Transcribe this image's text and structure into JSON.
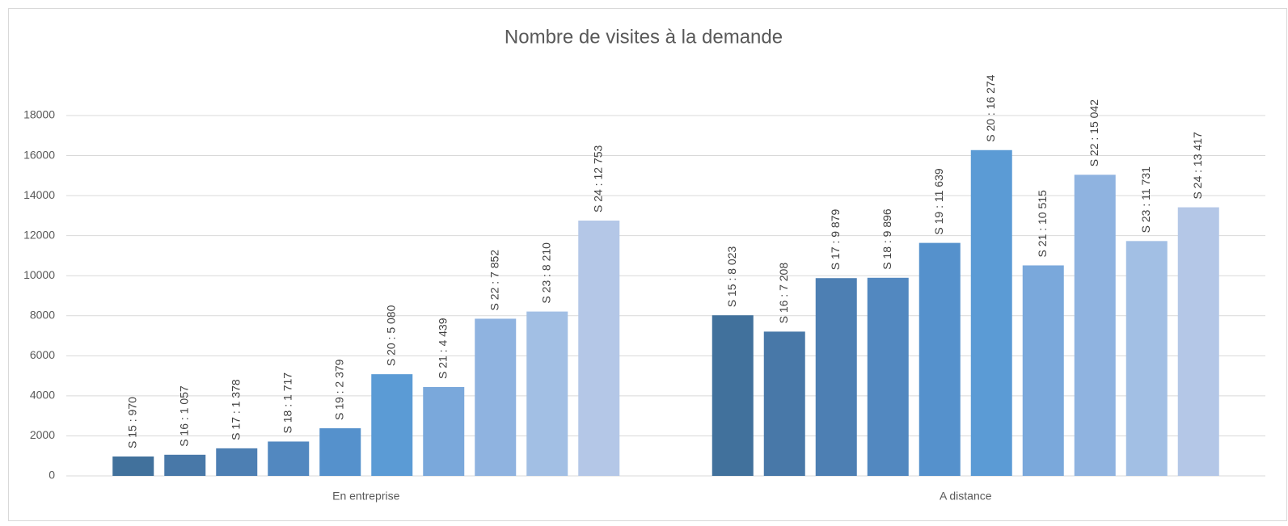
{
  "chart_data": {
    "type": "bar",
    "title": "Nombre de visites à la demande",
    "categories": [
      "En entreprise",
      "A distance"
    ],
    "series": [
      {
        "name": "S 15",
        "color": "#41719c",
        "values": [
          970,
          8023
        ],
        "value_labels": [
          "S 15 : 970",
          "S 15 : 8 023"
        ]
      },
      {
        "name": "S 16",
        "color": "#4878a8",
        "values": [
          1057,
          7208
        ],
        "value_labels": [
          "S 16 : 1 057",
          "S 16 : 7 208"
        ]
      },
      {
        "name": "S 17",
        "color": "#4d7fb3",
        "values": [
          1378,
          9879
        ],
        "value_labels": [
          "S 17 : 1 378",
          "S 17 : 9 879"
        ]
      },
      {
        "name": "S 18",
        "color": "#5288c0",
        "values": [
          1717,
          9896
        ],
        "value_labels": [
          "S 18 : 1 717",
          "S 18 : 9 896"
        ]
      },
      {
        "name": "S 19",
        "color": "#5591cc",
        "values": [
          2379,
          11639
        ],
        "value_labels": [
          "S 19 : 2 379",
          "S 19 : 11 639"
        ]
      },
      {
        "name": "S 20",
        "color": "#5b9bd5",
        "values": [
          5080,
          16274
        ],
        "value_labels": [
          "S 20 : 5 080",
          "S 20 : 16 274"
        ]
      },
      {
        "name": "S 21",
        "color": "#7aa8db",
        "values": [
          4439,
          10515
        ],
        "value_labels": [
          "S 21 : 4 439",
          "S 21 : 10 515"
        ]
      },
      {
        "name": "S 22",
        "color": "#8fb3e0",
        "values": [
          7852,
          15042
        ],
        "value_labels": [
          "S 22 : 7 852",
          "S 22 : 15 042"
        ]
      },
      {
        "name": "S 23",
        "color": "#a2bfe4",
        "values": [
          8210,
          11731
        ],
        "value_labels": [
          "S 23 : 8 210",
          "S 23 : 11 731"
        ]
      },
      {
        "name": "S 24",
        "color": "#b4c7e7",
        "values": [
          12753,
          13417
        ],
        "value_labels": [
          "S 24 : 12 753",
          "S 24 : 13 417"
        ]
      }
    ],
    "ylim": [
      0,
      18000
    ],
    "yticks": [
      0,
      2000,
      4000,
      6000,
      8000,
      10000,
      12000,
      14000,
      16000,
      18000
    ],
    "grid": true
  }
}
